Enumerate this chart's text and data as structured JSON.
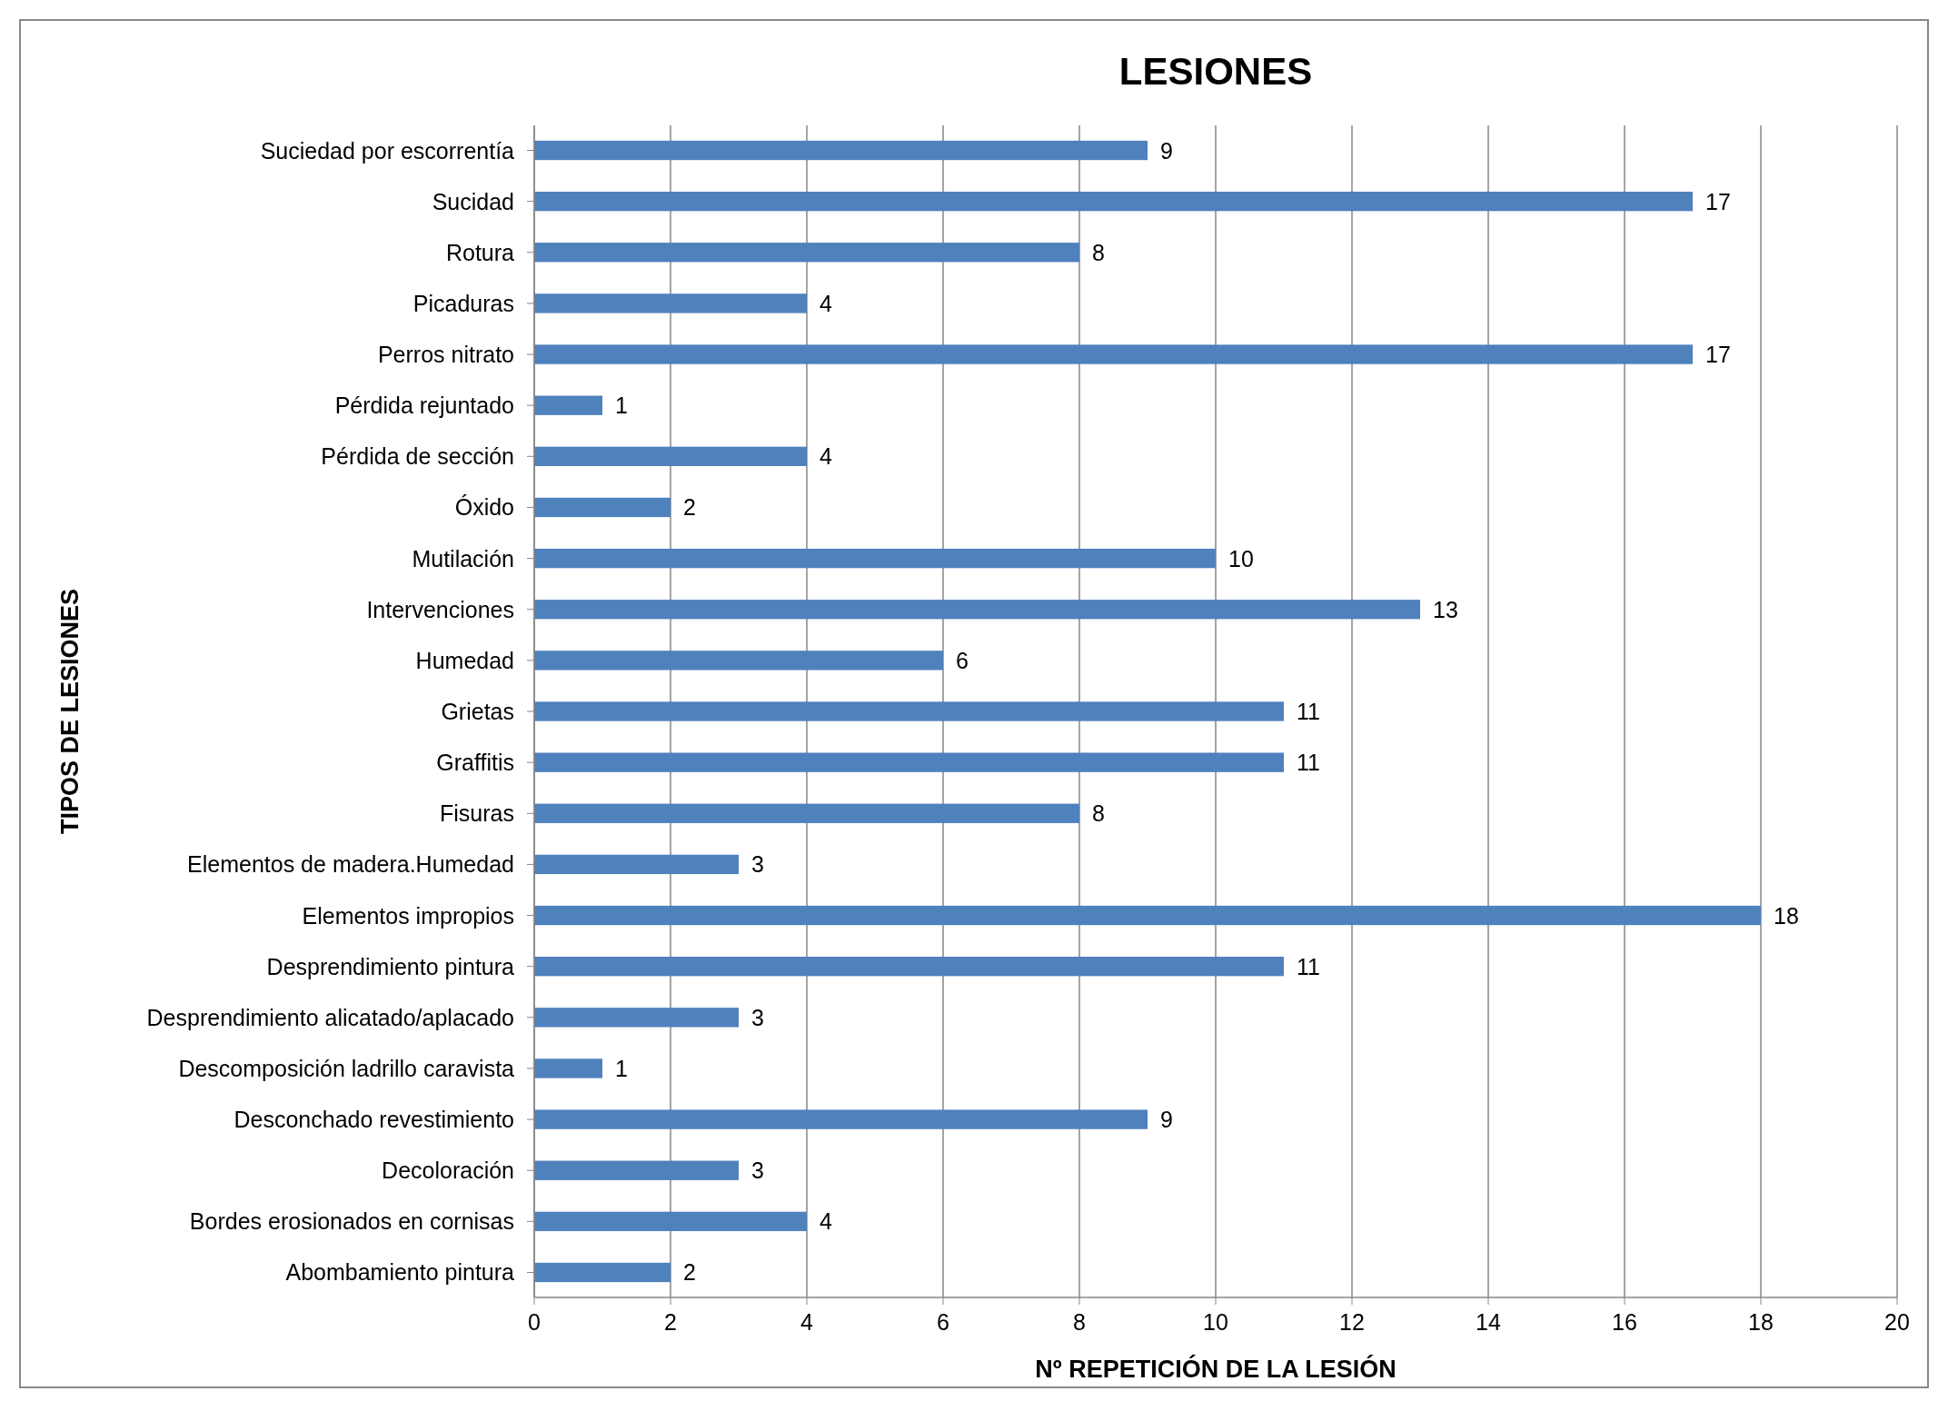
{
  "chart_data": {
    "type": "bar",
    "orientation": "horizontal",
    "title": "LESIONES",
    "xlabel": "Nº REPETICIÓN DE LA LESIÓN",
    "ylabel": "TIPOS DE LESIONES",
    "categories": [
      "Suciedad por escorrentía",
      "Sucidad",
      "Rotura",
      "Picaduras",
      "Perros nitrato",
      "Pérdida rejuntado",
      "Pérdida de sección",
      "Óxido",
      "Mutilación",
      "Intervenciones",
      "Humedad",
      "Grietas",
      "Graffitis",
      "Fisuras",
      "Elementos de madera.Humedad",
      "Elementos impropios",
      "Desprendimiento pintura",
      "Desprendimiento alicatado/aplacado",
      "Descomposición ladrillo caravista",
      "Desconchado revestimiento",
      "Decoloración",
      "Bordes erosionados en cornisas",
      "Abombamiento pintura"
    ],
    "values": [
      9,
      17,
      8,
      4,
      17,
      1,
      4,
      2,
      10,
      13,
      6,
      11,
      11,
      8,
      3,
      18,
      11,
      3,
      1,
      9,
      3,
      4,
      2
    ],
    "color": "#4f81bd",
    "xlim": [
      0,
      20
    ],
    "xticks": [
      0,
      2,
      4,
      6,
      8,
      10,
      12,
      14,
      16,
      18,
      20
    ],
    "grid": "x",
    "data_labels": true
  }
}
